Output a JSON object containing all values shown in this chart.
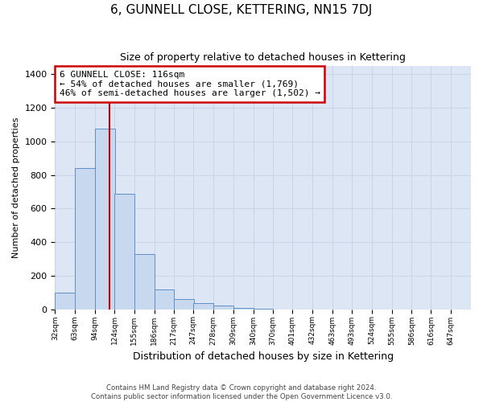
{
  "title": "6, GUNNELL CLOSE, KETTERING, NN15 7DJ",
  "subtitle": "Size of property relative to detached houses in Kettering",
  "xlabel": "Distribution of detached houses by size in Kettering",
  "ylabel": "Number of detached properties",
  "bin_labels": [
    "32sqm",
    "63sqm",
    "94sqm",
    "124sqm",
    "155sqm",
    "186sqm",
    "217sqm",
    "247sqm",
    "278sqm",
    "309sqm",
    "340sqm",
    "370sqm",
    "401sqm",
    "432sqm",
    "463sqm",
    "493sqm",
    "524sqm",
    "555sqm",
    "586sqm",
    "616sqm",
    "647sqm"
  ],
  "bin_left_edges": [
    32,
    63,
    94,
    124,
    155,
    186,
    217,
    247,
    278,
    309,
    340,
    370,
    401,
    432,
    463,
    493,
    524,
    555,
    586,
    616,
    647
  ],
  "bin_width": 31,
  "bar_heights": [
    100,
    840,
    1075,
    690,
    330,
    120,
    60,
    35,
    20,
    10,
    5,
    0,
    0,
    0,
    0,
    0,
    0,
    0,
    0,
    0
  ],
  "bar_color": "#c8d8ef",
  "bar_edgecolor": "#6090c8",
  "grid_color": "#ccd5e8",
  "background_color": "#dde6f5",
  "red_line_x": 116,
  "annotation_title": "6 GUNNELL CLOSE: 116sqm",
  "annotation_line1": "← 54% of detached houses are smaller (1,769)",
  "annotation_line2": "46% of semi-detached houses are larger (1,502) →",
  "annotation_box_facecolor": "#ffffff",
  "annotation_box_edgecolor": "#cc0000",
  "ylim": [
    0,
    1450
  ],
  "yticks": [
    0,
    200,
    400,
    600,
    800,
    1000,
    1200,
    1400
  ],
  "footer1": "Contains HM Land Registry data © Crown copyright and database right 2024.",
  "footer2": "Contains public sector information licensed under the Open Government Licence v3.0."
}
